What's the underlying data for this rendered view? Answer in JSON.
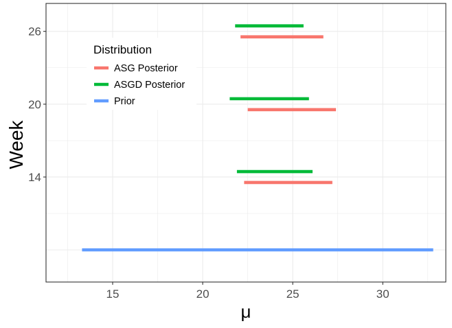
{
  "chart_data": {
    "type": "interval",
    "xlabel": "μ",
    "ylabel": "Week",
    "xlim": [
      11.3,
      33.5
    ],
    "x_ticks": [
      15,
      20,
      25,
      30
    ],
    "y_ticks": [
      14,
      20,
      26
    ],
    "grid": true,
    "legend": {
      "title": "Distribution",
      "placement": "top-left-inside"
    },
    "series": [
      {
        "name": "ASG Posterior",
        "color": "#F8766D",
        "intervals": [
          {
            "week": 26,
            "low": 22.1,
            "high": 26.7
          },
          {
            "week": 20,
            "low": 22.5,
            "high": 27.4
          },
          {
            "week": 14,
            "low": 22.3,
            "high": 27.2
          }
        ]
      },
      {
        "name": "ASGD Posterior",
        "color": "#00BA38",
        "intervals": [
          {
            "week": 26,
            "low": 21.8,
            "high": 25.6
          },
          {
            "week": 20,
            "low": 21.5,
            "high": 25.9
          },
          {
            "week": 14,
            "low": 21.9,
            "high": 26.1
          }
        ]
      },
      {
        "name": "Prior",
        "color": "#619CFF",
        "intervals": [
          {
            "week": 8,
            "low": 13.3,
            "high": 32.8
          }
        ]
      }
    ]
  }
}
